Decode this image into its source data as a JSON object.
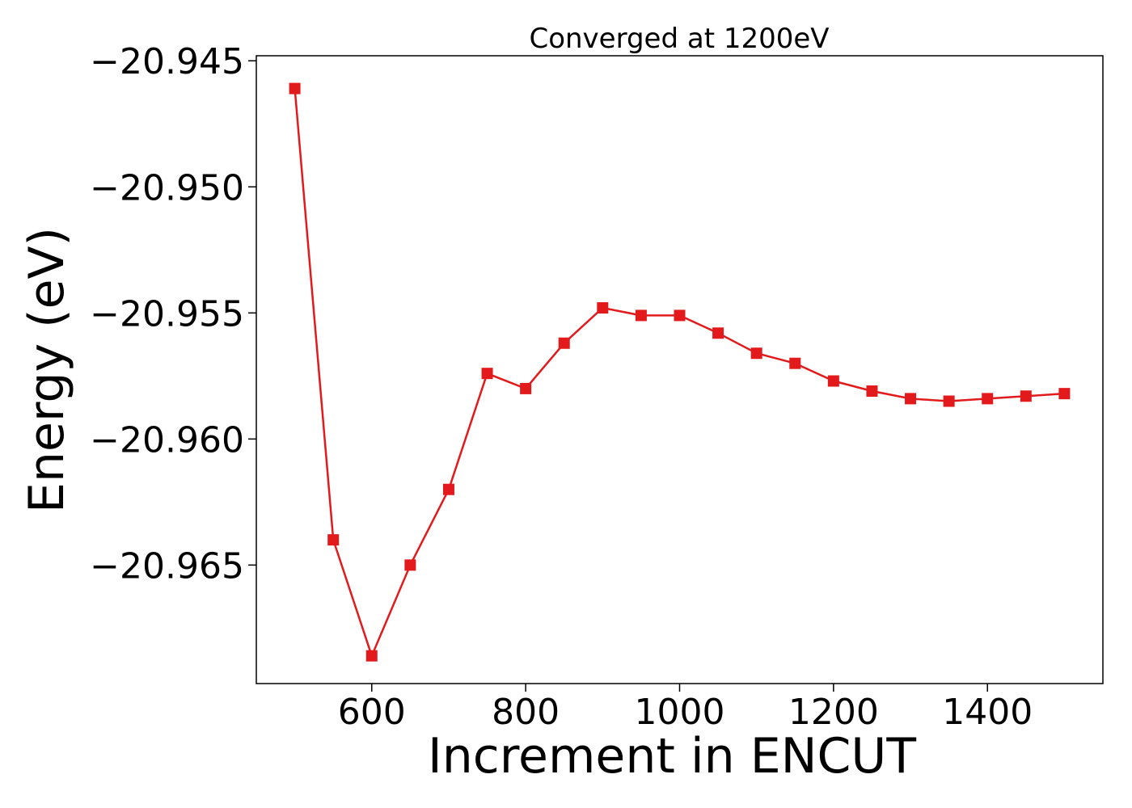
{
  "chart_data": {
    "type": "line",
    "title": "Converged at 1200eV",
    "xlabel": "Increment in ENCUT",
    "ylabel": "Energy (eV)",
    "xlim": [
      450,
      1550
    ],
    "ylim": [
      -20.9697,
      -20.9448
    ],
    "x_ticks": [
      600,
      800,
      1000,
      1200,
      1400
    ],
    "y_ticks": [
      -20.945,
      -20.95,
      -20.955,
      -20.96,
      -20.965
    ],
    "y_tick_labels": [
      "−20.945",
      "−20.950",
      "−20.955",
      "−20.960",
      "−20.965"
    ],
    "grid": false,
    "series": [
      {
        "marker": "square",
        "color": "#e31a1c",
        "x": [
          500,
          550,
          600,
          650,
          700,
          750,
          800,
          850,
          900,
          950,
          1000,
          1050,
          1100,
          1150,
          1200,
          1250,
          1300,
          1350,
          1400,
          1450,
          1500
        ],
        "y": [
          -20.9461,
          -20.964,
          -20.9686,
          -20.965,
          -20.962,
          -20.9574,
          -20.958,
          -20.9562,
          -20.9548,
          -20.9551,
          -20.9551,
          -20.9558,
          -20.9566,
          -20.957,
          -20.9577,
          -20.9581,
          -20.9584,
          -20.9585,
          -20.9584,
          -20.9583,
          -20.9582
        ]
      }
    ]
  }
}
